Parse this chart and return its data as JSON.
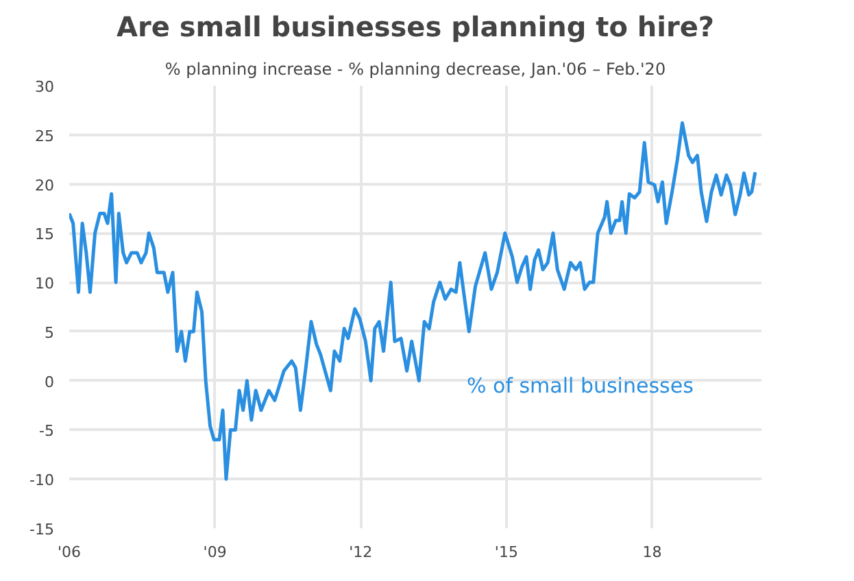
{
  "chart_data": {
    "type": "line",
    "title": "Are small businesses planning to hire?",
    "subtitle": "% planning increase - % planning decrease, Jan.'06 – Feb.'20",
    "xlim": [
      2006,
      2020.25
    ],
    "xticks": [
      {
        "value": 2006,
        "label": "'06"
      },
      {
        "value": 2009,
        "label": "'09"
      },
      {
        "value": 2012,
        "label": "'12"
      },
      {
        "value": 2015,
        "label": "'15"
      },
      {
        "value": 2018,
        "label": "18"
      }
    ],
    "ylim": [
      -15,
      30
    ],
    "yticks": [
      -15,
      -10,
      -5,
      0,
      5,
      10,
      15,
      20,
      25,
      30
    ],
    "grid": true,
    "legend": false,
    "marker": "none",
    "line_style": "solid",
    "series": [
      {
        "name": "% of small businesses",
        "color": "#2a8fe0",
        "x": [
          2006.0,
          2006.08,
          2006.19,
          2006.27,
          2006.35,
          2006.43,
          2006.53,
          2006.63,
          2006.72,
          2006.79,
          2006.87,
          2006.96,
          2007.02,
          2007.11,
          2007.18,
          2007.28,
          2007.4,
          2007.48,
          2007.58,
          2007.64,
          2007.74,
          2007.81,
          2007.95,
          2008.03,
          2008.13,
          2008.22,
          2008.31,
          2008.39,
          2008.48,
          2008.56,
          2008.63,
          2008.73,
          2008.81,
          2008.9,
          2008.98,
          2009.09,
          2009.16,
          2009.23,
          2009.32,
          2009.42,
          2009.5,
          2009.58,
          2009.66,
          2009.75,
          2009.84,
          2009.95,
          2010.11,
          2010.23,
          2010.42,
          2010.58,
          2010.66,
          2010.76,
          2010.87,
          2010.98,
          2011.09,
          2011.17,
          2011.38,
          2011.46,
          2011.57,
          2011.66,
          2011.74,
          2011.88,
          2011.98,
          2012.1,
          2012.21,
          2012.29,
          2012.38,
          2012.47,
          2012.62,
          2012.7,
          2012.83,
          2012.95,
          2013.05,
          2013.2,
          2013.31,
          2013.41,
          2013.5,
          2013.63,
          2013.74,
          2013.86,
          2013.96,
          2014.04,
          2014.12,
          2014.23,
          2014.36,
          2014.46,
          2014.56,
          2014.69,
          2014.81,
          2014.97,
          2015.12,
          2015.22,
          2015.32,
          2015.41,
          2015.49,
          2015.58,
          2015.66,
          2015.75,
          2015.85,
          2015.96,
          2016.05,
          2016.19,
          2016.32,
          2016.43,
          2016.52,
          2016.61,
          2016.71,
          2016.79,
          2016.88,
          2017.02,
          2017.07,
          2017.15,
          2017.25,
          2017.33,
          2017.38,
          2017.46,
          2017.53,
          2017.64,
          2017.74,
          2017.84,
          2017.92,
          2018.05,
          2018.12,
          2018.21,
          2018.29,
          2018.41,
          2018.52,
          2018.62,
          2018.75,
          2018.83,
          2018.93,
          2019.01,
          2019.12,
          2019.22,
          2019.32,
          2019.42,
          2019.53,
          2019.61,
          2019.71,
          2019.81,
          2019.89,
          2019.99,
          2020.05,
          2020.12
        ],
        "values": [
          17,
          16,
          9,
          16,
          13,
          9,
          15,
          17,
          17,
          16,
          19,
          10,
          17,
          13,
          12,
          13,
          13,
          12,
          13,
          15,
          13.5,
          11,
          11,
          9,
          11,
          3,
          5,
          2,
          5,
          5,
          9,
          7,
          0,
          -4.6,
          -6,
          -6,
          -3,
          -10,
          -5,
          -5,
          -1,
          -3,
          0,
          -4,
          -1,
          -3,
          -1,
          -2,
          1,
          2,
          1.3,
          -3,
          1.3,
          6,
          3.7,
          2.7,
          -1,
          3,
          2,
          5.3,
          4.3,
          7.3,
          6.3,
          4,
          0,
          5.3,
          6,
          3,
          10,
          4,
          4.3,
          1,
          4,
          0,
          6,
          5.3,
          8,
          10,
          8.3,
          9.3,
          9,
          12,
          9,
          5,
          9.6,
          11.3,
          13,
          9.3,
          11,
          15,
          12.6,
          10,
          11.6,
          12.6,
          9.3,
          12.3,
          13.3,
          11.3,
          12,
          15,
          11.3,
          9.3,
          12,
          11.3,
          12,
          9.3,
          10,
          10,
          15,
          16.6,
          18.2,
          15,
          16.3,
          16.3,
          18.2,
          15,
          19,
          18.6,
          19.2,
          24.2,
          20.2,
          19.9,
          18.2,
          20.2,
          16,
          19.2,
          22.5,
          26.2,
          22.9,
          22.2,
          22.9,
          19.2,
          16.2,
          19.2,
          20.9,
          18.9,
          20.9,
          19.9,
          16.9,
          18.9,
          21.1,
          18.9,
          19.2,
          21.2
        ]
      }
    ]
  }
}
